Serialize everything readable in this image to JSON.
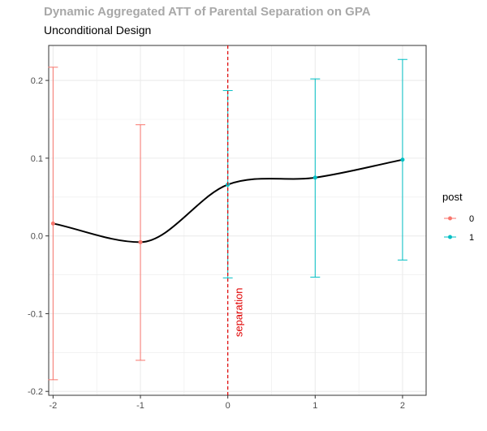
{
  "chart_data": {
    "type": "line",
    "title": "Dynamic Aggregated ATT of Parental Separation on GPA",
    "subtitle": "Unconditional Design",
    "xlabel": "",
    "ylabel": "",
    "x": [
      -2,
      -1,
      0,
      1,
      2
    ],
    "xlim": [
      -2.05,
      2.27
    ],
    "ylim": [
      -0.205,
      0.245
    ],
    "x_ticks": [
      -2,
      -1,
      0,
      1,
      2
    ],
    "y_ticks": [
      -0.2,
      -0.1,
      0.0,
      0.1,
      0.2
    ],
    "x_tick_labels": [
      "-2",
      "-1",
      "0",
      "1",
      "2"
    ],
    "y_tick_labels": [
      "-0.2",
      "-0.1",
      "0.0",
      "0.1",
      "0.2"
    ],
    "grid": true,
    "series": [
      {
        "name": "0",
        "x": [
          -2,
          -1
        ],
        "estimate": [
          0.016,
          -0.008
        ],
        "ci_lower": [
          -0.185,
          -0.16
        ],
        "ci_upper": [
          0.217,
          0.143
        ]
      },
      {
        "name": "1",
        "x": [
          0,
          1,
          2
        ],
        "estimate": [
          0.066,
          0.075,
          0.098
        ],
        "ci_lower": [
          -0.054,
          -0.053,
          -0.031
        ],
        "ci_upper": [
          0.187,
          0.202,
          0.227
        ]
      }
    ],
    "smooth_line": {
      "x": [
        -2,
        -1,
        0,
        1,
        2
      ],
      "y": [
        0.016,
        -0.008,
        0.066,
        0.075,
        0.098
      ]
    },
    "vline": {
      "x": 0,
      "label": "separation",
      "style": "dashed"
    },
    "legend": {
      "title": "post",
      "placement": "right",
      "entries": [
        "0",
        "1"
      ]
    },
    "colors": {
      "post_0": "#F8766D",
      "post_1": "#00BFC4",
      "smooth": "#000000",
      "vline": "#E00000",
      "grid": "#EBEBEB",
      "axis_text": "#4D4D4D",
      "title": "#A8A8A8"
    }
  }
}
